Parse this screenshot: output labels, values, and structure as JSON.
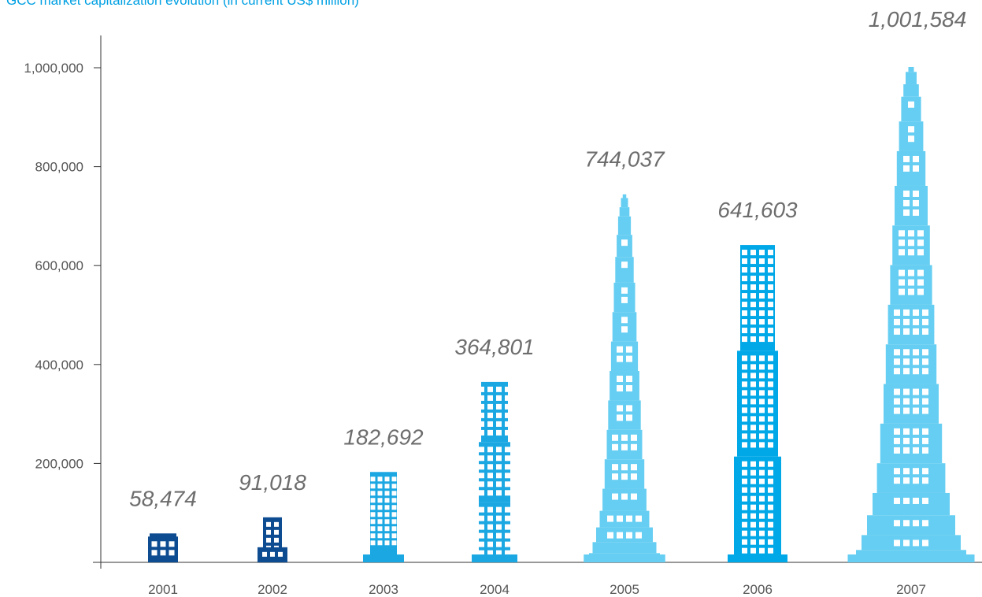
{
  "chart_data": {
    "type": "bar",
    "title": "GCC market capitalization evolution (in current US$ million)",
    "categories": [
      "2001",
      "2002",
      "2003",
      "2004",
      "2005",
      "2006",
      "2007"
    ],
    "values": [
      58474,
      91018,
      182692,
      364801,
      744037,
      641603,
      1001584
    ],
    "data_labels": [
      "58,474",
      "91,018",
      "182,692",
      "364,801",
      "744,037",
      "641,603",
      "1,001,584"
    ],
    "xlabel": "",
    "ylabel": "",
    "ylim": [
      0,
      1000000
    ],
    "yticks": [
      200000,
      400000,
      600000,
      800000,
      1000000
    ],
    "ytick_labels": [
      "200,000",
      "400,000",
      "600,000",
      "800,000",
      "1,000,000"
    ],
    "grid": false,
    "bar_style": "skyscraper",
    "bar_colors": [
      "#0e4c92",
      "#0e4c92",
      "#1aa7e2",
      "#1aa7e2",
      "#66cef2",
      "#00a8e8",
      "#66cef2"
    ]
  }
}
